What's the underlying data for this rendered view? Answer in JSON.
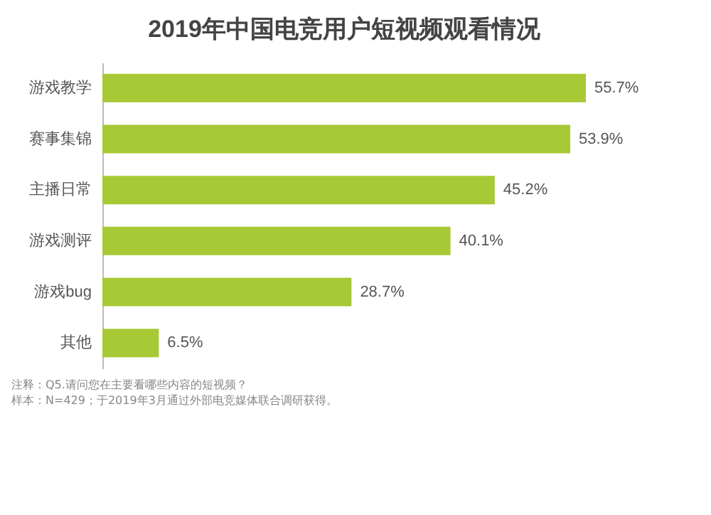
{
  "chart_data": {
    "type": "bar",
    "orientation": "horizontal",
    "title": "2019年中国电竞用户短视频观看情况",
    "categories": [
      "游戏教学",
      "赛事集锦",
      "主播日常",
      "游戏测评",
      "游戏bug",
      "其他"
    ],
    "values": [
      55.7,
      53.9,
      45.2,
      40.1,
      28.7,
      6.5
    ],
    "value_labels": [
      "55.7%",
      "53.9%",
      "45.2%",
      "40.1%",
      "28.7%",
      "6.5%"
    ],
    "color": "#a6c935",
    "annotations": [
      "注释：Q5.请问您在主要看哪些内容的短视频？",
      "样本：N=429；于2019年3月通过外部电竞媒体联合调研获得。"
    ]
  }
}
